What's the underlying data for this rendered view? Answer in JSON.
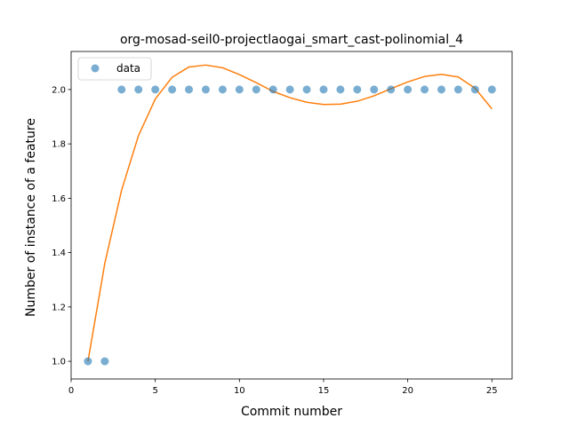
{
  "chart_data": {
    "type": "scatter",
    "title": "org-mosad-seil0-projectlaogai_smart_cast-polinomial_4",
    "xlabel": "Commit number",
    "ylabel": "Number of instance of a feature",
    "xlim": [
      0,
      26.2
    ],
    "ylim": [
      0.935,
      2.14
    ],
    "xticks": [
      0,
      5,
      10,
      15,
      20,
      25
    ],
    "yticks": [
      1.0,
      1.2,
      1.4,
      1.6,
      1.8,
      2.0
    ],
    "grid": false,
    "legend": {
      "position": "top-left",
      "entries": [
        "data"
      ]
    },
    "series": [
      {
        "name": "data",
        "kind": "scatter",
        "color": "#1f77b4",
        "x": [
          1,
          2,
          3,
          4,
          5,
          6,
          7,
          8,
          9,
          10,
          11,
          12,
          13,
          14,
          15,
          16,
          17,
          18,
          19,
          20,
          21,
          22,
          23,
          24,
          25
        ],
        "y": [
          1,
          1,
          2,
          2,
          2,
          2,
          2,
          2,
          2,
          2,
          2,
          2,
          2,
          2,
          2,
          2,
          2,
          2,
          2,
          2,
          2,
          2,
          2,
          2,
          2
        ]
      },
      {
        "kind": "line",
        "color": "#ff7f0e",
        "x": [
          1,
          2,
          3,
          4,
          5,
          6,
          7,
          8,
          9,
          10,
          11,
          12,
          13,
          14,
          15,
          16,
          17,
          18,
          19,
          20,
          21,
          22,
          23,
          24,
          25
        ],
        "y": [
          1.0,
          1.36,
          1.63,
          1.83,
          1.965,
          2.045,
          2.083,
          2.09,
          2.08,
          2.055,
          2.025,
          1.993,
          1.97,
          1.953,
          1.945,
          1.946,
          1.957,
          1.977,
          2.003,
          2.028,
          2.048,
          2.056,
          2.046,
          2.005,
          1.929
        ]
      }
    ]
  }
}
